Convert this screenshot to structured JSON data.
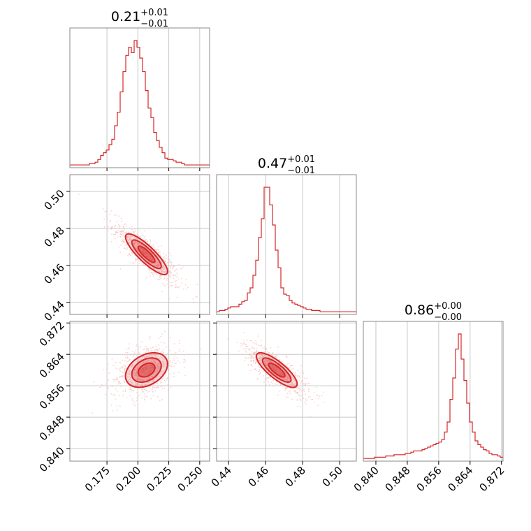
{
  "chart_data": {
    "type": "corner",
    "color": "#d62728",
    "parameters": [
      {
        "title": {
          "value": "0.21",
          "plus": "+0.01",
          "minus": "−0.01"
        },
        "range": [
          0.145,
          0.258
        ],
        "ticks": [
          0.175,
          0.2,
          0.225,
          0.25
        ],
        "tick_labels": [
          "0.175",
          "0.200",
          "0.225",
          "0.250"
        ],
        "median": 0.207,
        "sigma": 0.0085,
        "hist": {
          "start": 0.145,
          "bin_width": 0.00226,
          "counts": [
            1,
            1,
            1,
            1,
            1,
            1,
            1,
            2,
            2,
            3,
            5,
            8,
            10,
            12,
            16,
            20,
            30,
            40,
            55,
            70,
            82,
            88,
            84,
            93,
            88,
            80,
            70,
            56,
            43,
            36,
            25,
            19,
            14,
            10,
            6,
            5,
            5,
            4,
            3,
            3,
            2,
            1,
            1,
            1,
            1,
            1,
            1,
            1,
            1,
            1
          ]
        }
      },
      {
        "title": {
          "value": "0.47",
          "plus": "+0.01",
          "minus": "−0.01"
        },
        "range": [
          0.4335,
          0.509
        ],
        "ticks": [
          0.44,
          0.46,
          0.48,
          0.5
        ],
        "tick_labels": [
          "0.44",
          "0.46",
          "0.48",
          "0.50"
        ],
        "median": 0.466,
        "sigma": 0.0055,
        "hist": {
          "start": 0.4335,
          "bin_width": 0.00151,
          "counts": [
            1,
            2,
            2,
            3,
            4,
            5,
            5,
            5,
            7,
            9,
            10,
            16,
            20,
            30,
            42,
            60,
            75,
            100,
            100,
            86,
            70,
            50,
            36,
            20,
            15,
            14,
            10,
            8,
            7,
            6,
            5,
            4,
            3,
            3,
            2,
            2,
            2,
            1,
            1,
            1,
            1,
            1,
            1,
            1,
            1,
            1,
            1,
            1,
            1,
            1
          ]
        }
      },
      {
        "title": {
          "value": "0.86",
          "plus": "+0.00",
          "minus": "−0.00"
        },
        "range": [
          0.8368,
          0.8724
        ],
        "ticks": [
          0.84,
          0.848,
          0.856,
          0.864,
          0.872
        ],
        "tick_labels": [
          "0.840",
          "0.848",
          "0.856",
          "0.864",
          "0.872"
        ],
        "median": 0.86,
        "sigma": 0.0022,
        "hist": {
          "start": 0.8368,
          "bin_width": 0.000712,
          "counts": [
            1,
            1,
            1,
            1,
            2,
            2,
            2,
            2,
            3,
            3,
            3,
            4,
            4,
            4,
            4,
            5,
            5,
            6,
            7,
            7,
            7,
            8,
            9,
            10,
            11,
            12,
            13,
            14,
            16,
            22,
            30,
            48,
            65,
            88,
            100,
            80,
            63,
            45,
            30,
            22,
            15,
            12,
            10,
            8,
            7,
            5,
            4,
            4,
            3,
            2
          ]
        }
      }
    ],
    "correlations": {
      "0-1": -0.85,
      "0-2": 0.35,
      "1-2": -0.8
    }
  }
}
